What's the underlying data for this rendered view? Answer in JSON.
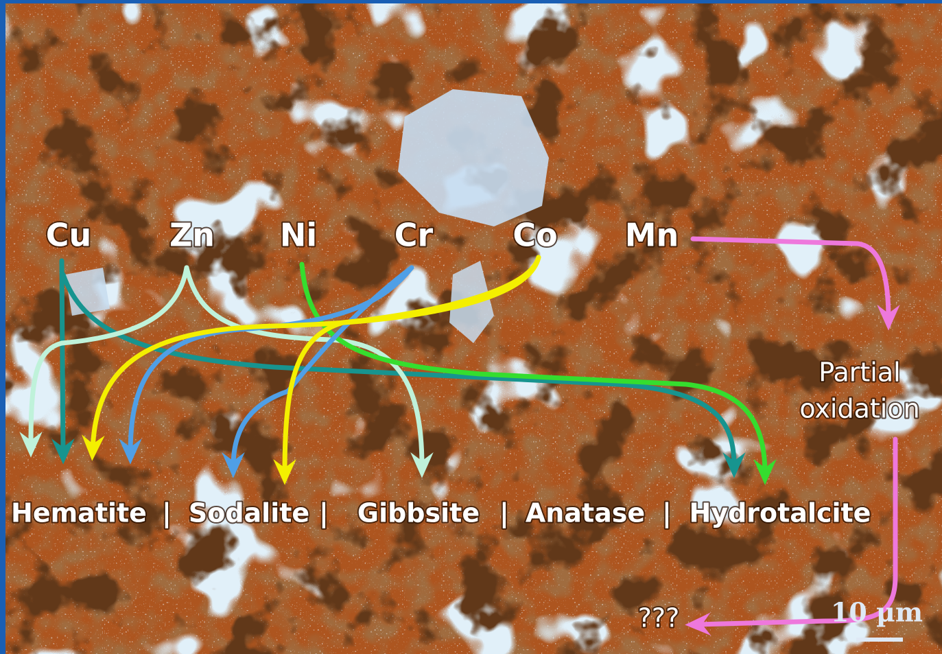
{
  "elements": [
    "Cu",
    "Zn",
    "Ni",
    "Cr",
    "Co",
    "Mn"
  ],
  "minerals": [
    "Hematite",
    "Sodalite",
    "Gibbsite",
    "Anatase",
    "Hydrotalcite"
  ],
  "separator": "|",
  "mn_product": {
    "line1": "Partial",
    "line2": "oxidation",
    "final": "???"
  },
  "scale_bar": "10 µm"
}
